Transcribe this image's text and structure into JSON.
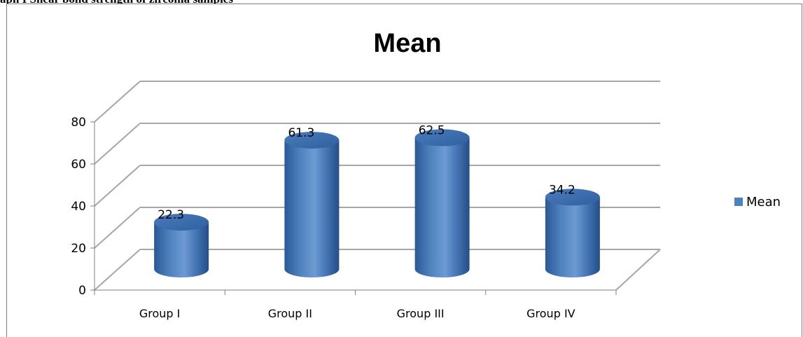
{
  "caption": "aph I Shear bond strength of zirconia samples",
  "chart_data": {
    "type": "bar",
    "style": "3d-cylinder",
    "title": "Mean",
    "categories": [
      "Group I",
      "Group II",
      "Group III",
      "Group IV"
    ],
    "series": [
      {
        "name": "Mean",
        "values": [
          22.3,
          61.3,
          62.5,
          34.2
        ],
        "color": "#4f81bd"
      }
    ],
    "data_labels": [
      "22.3",
      "61.3",
      "62.5",
      "34.2"
    ],
    "yticks": [
      "0",
      "20",
      "40",
      "60",
      "80"
    ],
    "ylim": [
      0,
      80
    ],
    "grid": true,
    "legend": "right",
    "xlabel": "",
    "ylabel": ""
  }
}
